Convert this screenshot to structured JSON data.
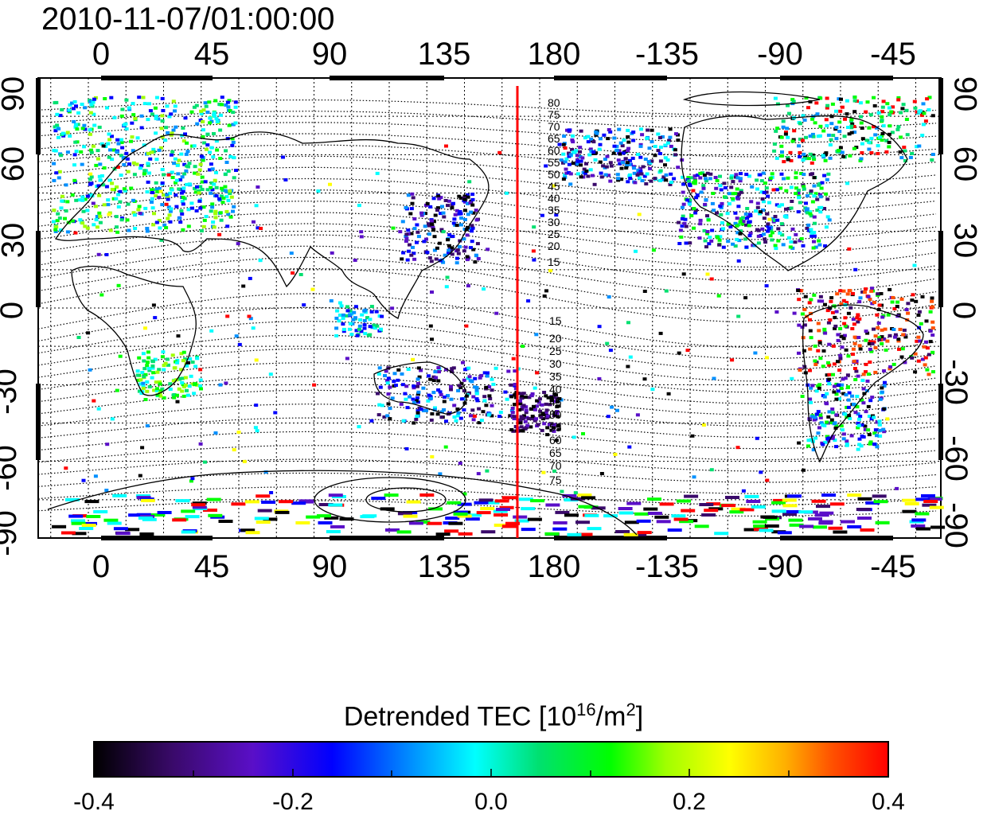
{
  "title": "2010-11-07/01:00:00",
  "axes": {
    "top_lon_ticks": [
      "0",
      "45",
      "90",
      "135",
      "180",
      "-135",
      "-90",
      "-45"
    ],
    "bottom_lon_ticks": [
      "0",
      "45",
      "90",
      "135",
      "180",
      "-135",
      "-90",
      "-45"
    ],
    "left_lat_ticks": [
      "90",
      "60",
      "30",
      "0",
      "-30",
      "-60",
      "-90"
    ],
    "right_lat_ticks": [
      "90",
      "60",
      "30",
      "0",
      "-30",
      "-60",
      "-90"
    ]
  },
  "contour_labels": {
    "north": [
      "80",
      "75",
      "70",
      "65",
      "60",
      "55",
      "50",
      "45",
      "40",
      "35",
      "30",
      "25",
      "20",
      "15"
    ],
    "south": [
      "15",
      "20",
      "25",
      "30",
      "35",
      "40",
      "45",
      "50",
      "55",
      "60",
      "65",
      "70",
      "75"
    ]
  },
  "colorbar": {
    "title_prefix": "Detrended TEC  [10",
    "title_exp1": "16",
    "title_mid": "/m",
    "title_exp2": "2",
    "title_suffix": "]",
    "tick_labels": [
      "-0.4",
      "-0.2",
      "0.0",
      "0.2",
      "0.4"
    ],
    "min": -0.4,
    "max": 0.4,
    "colors": [
      "#000000",
      "#3a0a6b",
      "#5a0fc8",
      "#0000ff",
      "#0090ff",
      "#00ffff",
      "#00e070",
      "#00ff00",
      "#a0ff00",
      "#ffff00",
      "#ffb000",
      "#ff5000",
      "#ff0000"
    ]
  },
  "marker_line": {
    "color": "#ff0000",
    "longitude": 167
  }
}
